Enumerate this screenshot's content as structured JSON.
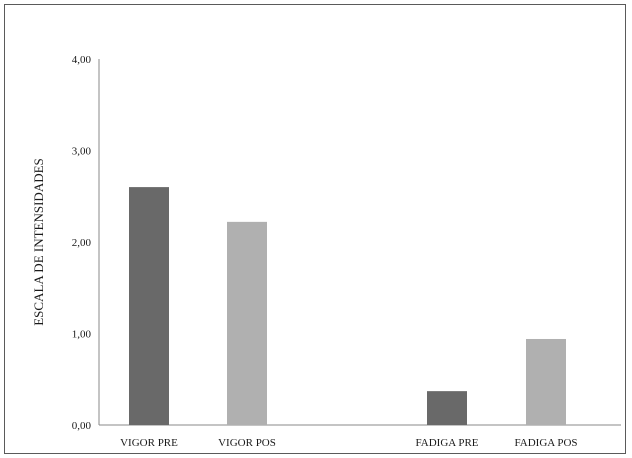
{
  "chart_data": {
    "type": "bar",
    "title": "",
    "xlabel": "",
    "ylabel": "ESCALA DE INTENSIDADES",
    "ylim": [
      0,
      4
    ],
    "yticks": [
      "0,00",
      "1,00",
      "2,00",
      "3,00",
      "4,00"
    ],
    "grid": false,
    "categories": [
      "VIGOR  PRE",
      "VIGOR  POS",
      "FADIGA PRE",
      "FADIGA POS"
    ],
    "values": [
      2.6,
      2.22,
      0.37,
      0.94
    ],
    "colors": [
      "#696969",
      "#b0b0b0",
      "#696969",
      "#b0b0b0"
    ]
  }
}
